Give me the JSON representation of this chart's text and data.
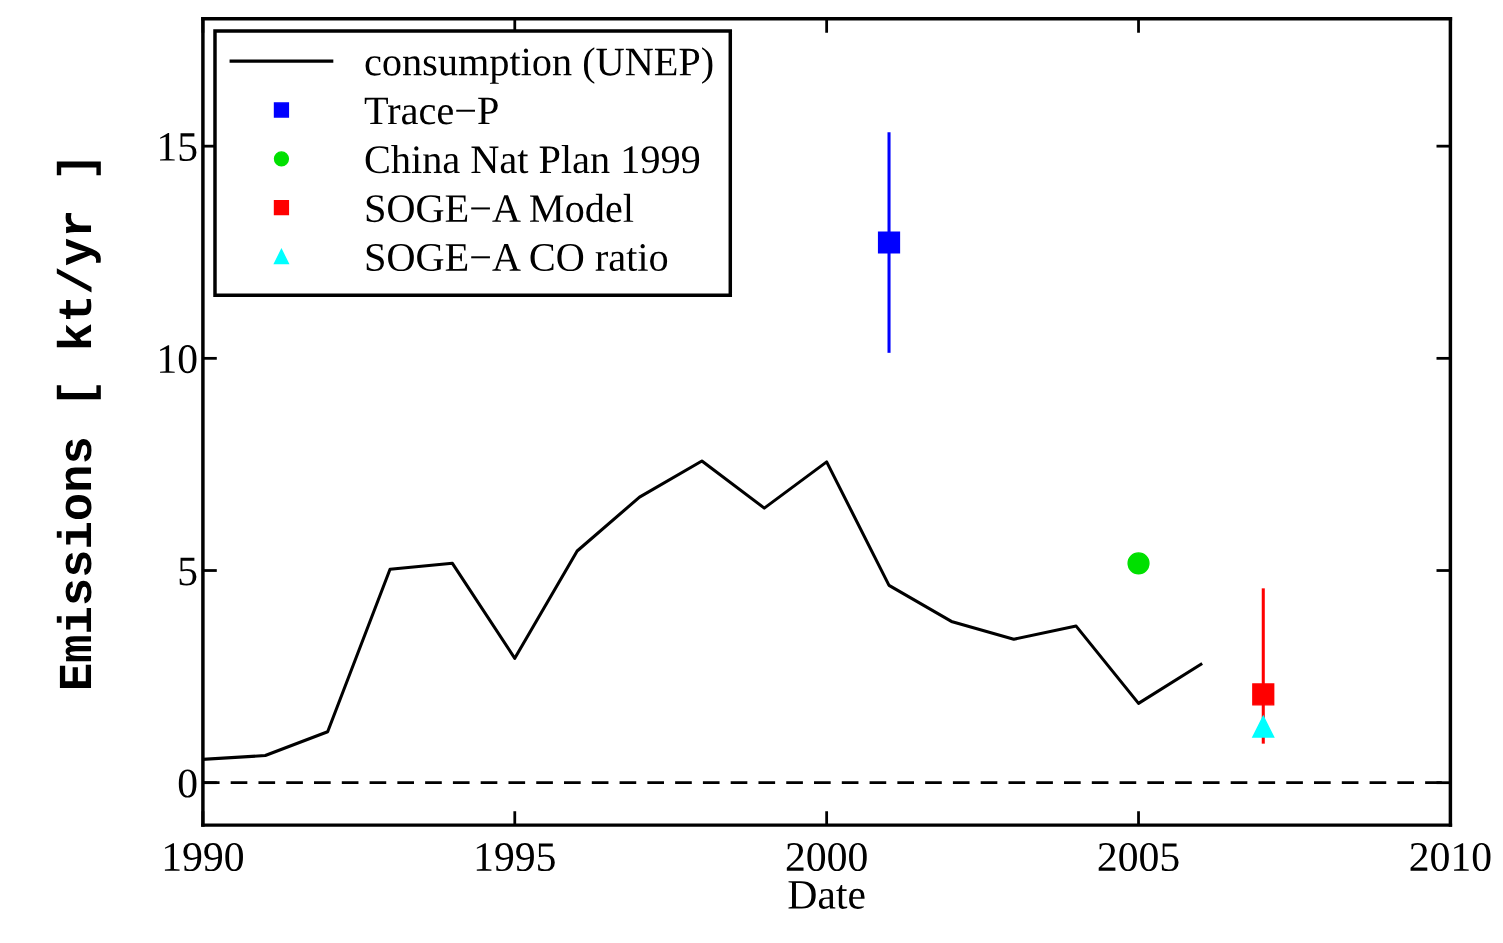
{
  "chart_data": {
    "type": "line",
    "xlabel": "Date",
    "ylabel": "Emissions [ kt/yr ]",
    "xlim": [
      1990,
      2010
    ],
    "ylim": [
      -1,
      18
    ],
    "xticks": [
      1990,
      1995,
      2000,
      2005,
      2010
    ],
    "yticks": [
      0,
      5,
      10,
      15
    ],
    "grid": false,
    "legend": "top left",
    "ref_lines": [
      {
        "axis": "y",
        "value": 0,
        "color": "#000000",
        "line_style": "dashed"
      }
    ],
    "series": [
      {
        "name": "consumption (UNEP)",
        "color": "#000000",
        "marker": "none",
        "line_style": "solid",
        "x": [
          1990,
          1991,
          1992,
          1993,
          1994,
          1995,
          1996,
          1997,
          1998,
          1999,
          2000,
          2001,
          2002,
          2003,
          2004,
          2005,
          2006
        ],
        "values": [
          0.55,
          0.64,
          1.2,
          5.03,
          5.17,
          2.93,
          5.46,
          6.73,
          7.58,
          6.47,
          7.56,
          4.65,
          3.8,
          3.38,
          3.69,
          1.87,
          2.79
        ]
      },
      {
        "name": "Trace−P",
        "type": "scatter",
        "color": "#0000ff",
        "marker": "square",
        "x": [
          2001
        ],
        "values": [
          12.73
        ],
        "errors": [
          2.6
        ]
      },
      {
        "name": "China Nat Plan 1999",
        "type": "scatter",
        "color": "#00e000",
        "marker": "circle",
        "x": [
          2005
        ],
        "values": [
          5.17
        ]
      },
      {
        "name": "SOGE−A Model",
        "type": "scatter",
        "color": "#ff0000",
        "marker": "square",
        "x": [
          2007
        ],
        "values": [
          2.08
        ],
        "errors": [
          [
            0.92,
            4.58
          ]
        ]
      },
      {
        "name": "SOGE−A CO ratio",
        "type": "scatter",
        "color": "#00ffff",
        "marker": "triangle",
        "x": [
          2007
        ],
        "values": [
          1.32
        ]
      }
    ]
  }
}
